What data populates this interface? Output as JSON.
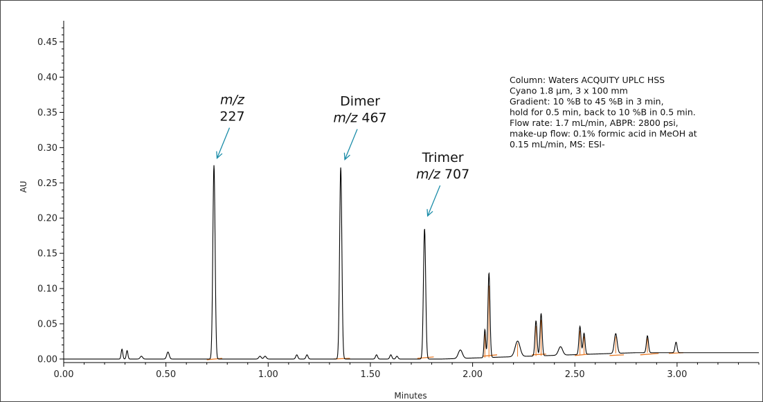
{
  "chart_data": {
    "type": "line",
    "title": "",
    "xlabel": "Minutes",
    "ylabel": "AU",
    "xlim": [
      0,
      3.4
    ],
    "ylim": [
      -0.005,
      0.48
    ],
    "x_ticks": [
      "0.00",
      "0.50",
      "1.00",
      "1.50",
      "2.00",
      "2.50",
      "3.00"
    ],
    "y_ticks": [
      "0.00",
      "0.05",
      "0.10",
      "0.15",
      "0.20",
      "0.25",
      "0.30",
      "0.35",
      "0.40",
      "0.45"
    ],
    "grid": false,
    "colors": {
      "trace": "#000000",
      "baseline": "#e87722",
      "annotation_arrow": "#1a8ca8"
    },
    "series": [
      {
        "baseline": 0.0,
        "peaks": [
          {
            "rt": 0.285,
            "height": 0.014,
            "width": 0.004
          },
          {
            "rt": 0.31,
            "height": 0.012,
            "width": 0.004
          },
          {
            "rt": 0.38,
            "height": 0.004,
            "width": 0.006
          },
          {
            "rt": 0.51,
            "height": 0.01,
            "width": 0.006
          },
          {
            "rt": 0.735,
            "height": 0.275,
            "width": 0.0055
          },
          {
            "rt": 0.96,
            "height": 0.004,
            "width": 0.006
          },
          {
            "rt": 0.985,
            "height": 0.004,
            "width": 0.006
          },
          {
            "rt": 1.14,
            "height": 0.006,
            "width": 0.005
          },
          {
            "rt": 1.19,
            "height": 0.006,
            "width": 0.005
          },
          {
            "rt": 1.355,
            "height": 0.272,
            "width": 0.0055
          },
          {
            "rt": 1.53,
            "height": 0.006,
            "width": 0.005
          },
          {
            "rt": 1.6,
            "height": 0.006,
            "width": 0.005
          },
          {
            "rt": 1.63,
            "height": 0.004,
            "width": 0.005
          },
          {
            "rt": 1.765,
            "height": 0.185,
            "width": 0.0055
          },
          {
            "rt": 1.94,
            "height": 0.012,
            "width": 0.01
          },
          {
            "rt": 2.06,
            "height": 0.04,
            "width": 0.004
          },
          {
            "rt": 2.08,
            "height": 0.12,
            "width": 0.005
          },
          {
            "rt": 2.22,
            "height": 0.022,
            "width": 0.012
          },
          {
            "rt": 2.31,
            "height": 0.05,
            "width": 0.005
          },
          {
            "rt": 2.335,
            "height": 0.06,
            "width": 0.005
          },
          {
            "rt": 2.43,
            "height": 0.012,
            "width": 0.01
          },
          {
            "rt": 2.525,
            "height": 0.04,
            "width": 0.005
          },
          {
            "rt": 2.545,
            "height": 0.03,
            "width": 0.005
          },
          {
            "rt": 2.7,
            "height": 0.028,
            "width": 0.007
          },
          {
            "rt": 2.855,
            "height": 0.024,
            "width": 0.005
          },
          {
            "rt": 2.995,
            "height": 0.015,
            "width": 0.005
          }
        ],
        "integration_baselines": [
          {
            "start": 0.7,
            "end": 0.775,
            "y_start": -0.001,
            "y_end": 0.001
          },
          {
            "start": 1.32,
            "end": 1.4,
            "y_start": 0.0,
            "y_end": 0.001
          },
          {
            "start": 1.73,
            "end": 1.81,
            "y_start": 0.001,
            "y_end": 0.003
          },
          {
            "start": 2.05,
            "end": 2.12,
            "y_start": 0.004,
            "y_end": 0.006
          },
          {
            "start": 2.29,
            "end": 2.36,
            "y_start": 0.006,
            "y_end": 0.007
          },
          {
            "start": 2.5,
            "end": 2.57,
            "y_start": 0.005,
            "y_end": 0.007
          },
          {
            "start": 2.67,
            "end": 2.74,
            "y_start": 0.005,
            "y_end": 0.006
          },
          {
            "start": 2.82,
            "end": 2.91,
            "y_start": 0.006,
            "y_end": 0.008
          },
          {
            "start": 2.96,
            "end": 3.03,
            "y_start": 0.008,
            "y_end": 0.009
          }
        ]
      }
    ],
    "annotations": [
      {
        "rt": 0.75,
        "tip_y": 0.285,
        "lines": [
          {
            "italic": "m/z",
            "text": ""
          },
          {
            "italic": "",
            "text": "227"
          }
        ]
      },
      {
        "rt": 1.375,
        "tip_y": 0.283,
        "lines": [
          {
            "italic": "",
            "text": "Dimer"
          },
          {
            "italic": "m/z",
            "text": " 467"
          }
        ]
      },
      {
        "rt": 1.78,
        "tip_y": 0.203,
        "lines": [
          {
            "italic": "",
            "text": "Trimer"
          },
          {
            "italic": "m/z",
            "text": " 707"
          }
        ]
      }
    ],
    "method_note": [
      "Column: Waters ACQUITY UPLC HSS",
      "Cyano 1.8 µm, 3 x 100 mm",
      "Gradient: 10 %B to 45 %B in 3 min,",
      "hold for 0.5 min, back to 10 %B in 0.5 min.",
      "Flow rate: 1.7 mL/min, ABPR: 2800 psi,",
      "make-up flow: 0.1% formic acid in MeOH at",
      "0.15 mL/min, MS: ESI-"
    ]
  }
}
